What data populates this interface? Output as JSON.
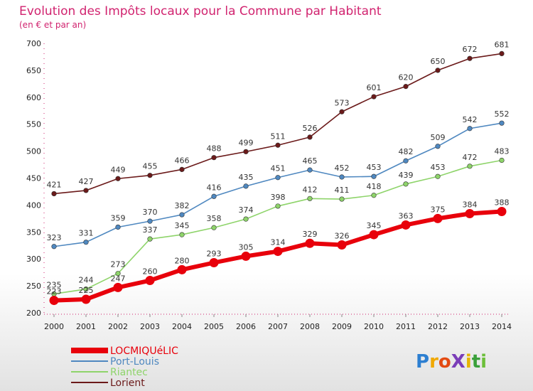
{
  "chart_data": {
    "type": "line",
    "title": "Evolution des Impôts locaux pour la Commune par Habitant",
    "subtitle": "(en € et par an)",
    "x": [
      2000,
      2001,
      2002,
      2003,
      2004,
      2005,
      2006,
      2007,
      2008,
      2009,
      2010,
      2011,
      2012,
      2013,
      2014
    ],
    "ylim": [
      200,
      700
    ],
    "yticks": [
      200,
      250,
      300,
      350,
      400,
      450,
      500,
      550,
      600,
      650,
      700
    ],
    "grid": false,
    "legend_position": "bottom-left",
    "series": [
      {
        "name": "LOCMIQUéLIC",
        "color": "#e8000b",
        "values": [
          223,
          225,
          247,
          260,
          280,
          293,
          305,
          314,
          329,
          326,
          345,
          363,
          375,
          384,
          388
        ]
      },
      {
        "name": "Port-Louis",
        "color": "#4f88c0",
        "values": [
          323,
          331,
          359,
          370,
          382,
          416,
          435,
          451,
          465,
          452,
          453,
          482,
          509,
          542,
          552
        ]
      },
      {
        "name": "Riantec",
        "color": "#8ed46a",
        "values": [
          235,
          244,
          273,
          337,
          345,
          358,
          374,
          398,
          412,
          411,
          418,
          439,
          453,
          472,
          483
        ]
      },
      {
        "name": "Lorient",
        "color": "#6b1a1a",
        "values": [
          421,
          427,
          449,
          455,
          466,
          488,
          499,
          511,
          526,
          573,
          601,
          620,
          650,
          672,
          681
        ]
      }
    ]
  },
  "logo": {
    "text": "ProXiti"
  }
}
